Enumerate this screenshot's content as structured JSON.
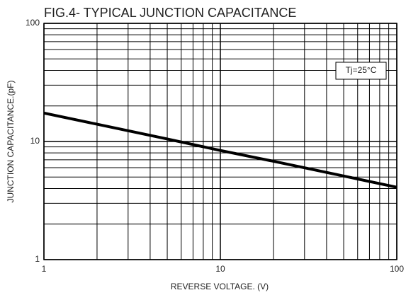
{
  "chart_data": {
    "type": "line",
    "title": "FIG.4- TYPICAL JUNCTION CAPACITANCE",
    "x_label": "REVERSE VOLTAGE. (V)",
    "y_label": "JUNCTION CAPACITANCE.(pF)",
    "annotation": "Tj=25°C",
    "x": [
      1,
      2,
      5,
      10,
      20,
      50,
      100
    ],
    "series": [
      {
        "color": "#000000",
        "values": [
          17.4,
          14,
          10.5,
          8.4,
          6.8,
          5.1,
          4.1
        ]
      }
    ],
    "xlim": [
      1,
      100
    ],
    "ylim": [
      1,
      100
    ],
    "xticks": [
      1,
      10,
      100
    ],
    "yticks": [
      1,
      10,
      100
    ],
    "xminorticks": [
      2,
      3,
      4,
      5,
      6,
      7,
      8,
      9,
      20,
      30,
      40,
      50,
      60,
      70,
      80,
      90
    ],
    "yminorticks": [
      2,
      3,
      4,
      5,
      6,
      7,
      8,
      9,
      20,
      30,
      40,
      50,
      60,
      70,
      80,
      90
    ],
    "xscale": "log",
    "yscale": "log",
    "grid": true
  }
}
